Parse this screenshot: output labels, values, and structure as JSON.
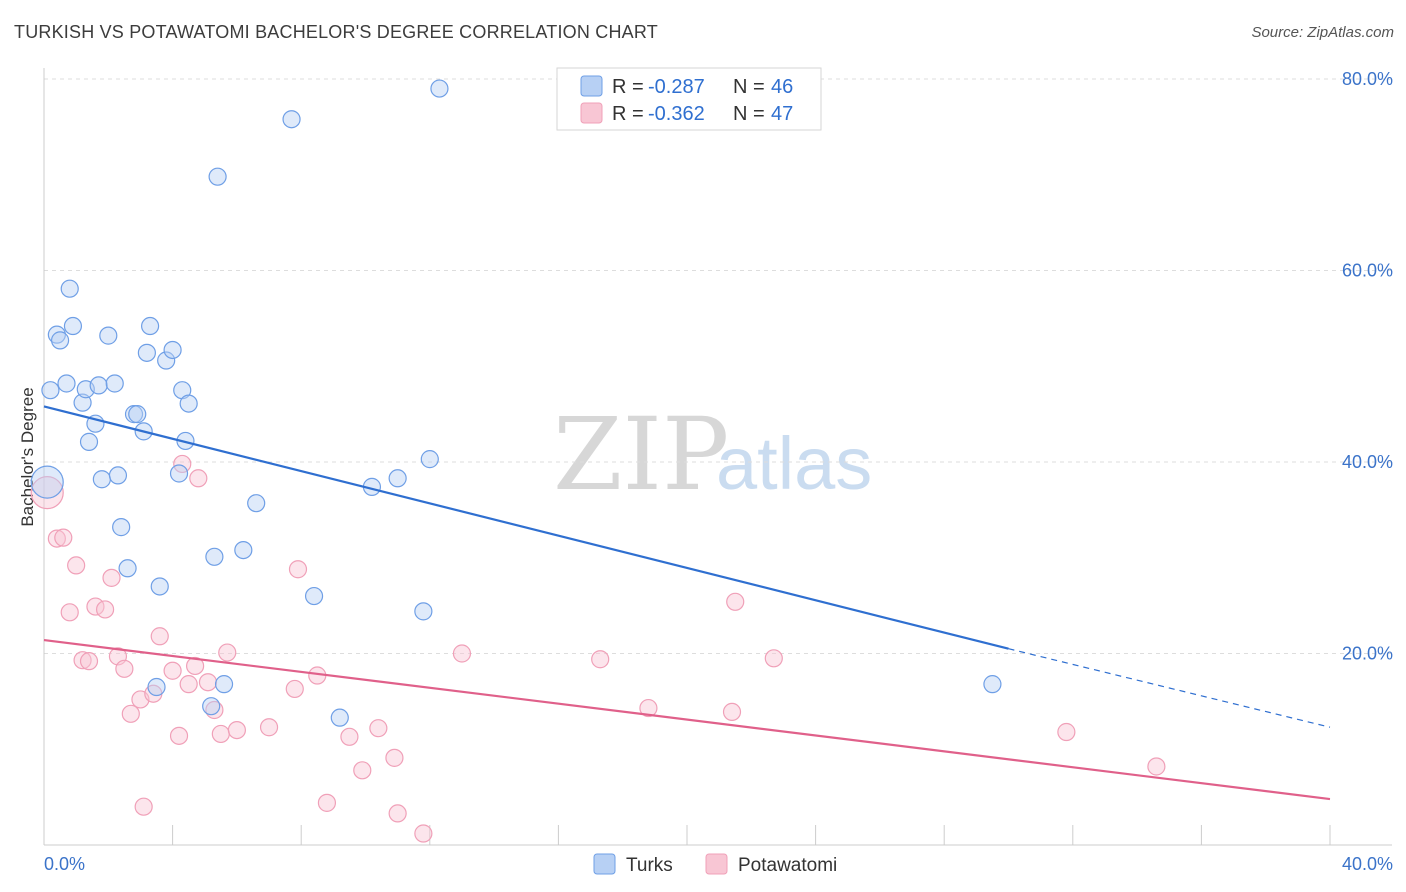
{
  "header": {
    "title": "TURKISH VS POTAWATOMI BACHELOR'S DEGREE CORRELATION CHART",
    "source": "Source: ZipAtlas.com"
  },
  "watermark": {
    "part1": "ZIP",
    "part2": "atlas"
  },
  "legend": {
    "rows": [
      {
        "r_label": "R = ",
        "r_value": "-0.287",
        "n_label": "N = ",
        "n_value": "46"
      },
      {
        "r_label": "R = ",
        "r_value": "-0.362",
        "n_label": "N = ",
        "n_value": "47"
      }
    ]
  },
  "bottom_legend": {
    "items": [
      "Turks",
      "Potawatomi"
    ]
  },
  "chart_data": {
    "type": "scatter",
    "title": "TURKISH VS POTAWATOMI BACHELOR'S DEGREE CORRELATION CHART",
    "xlabel": "",
    "ylabel": "Bachelor's Degree",
    "xlim": [
      0,
      40
    ],
    "ylim": [
      0,
      80
    ],
    "x_tick_labels": [
      "0.0%",
      "40.0%"
    ],
    "y_ticks": [
      20,
      40,
      60,
      80
    ],
    "y_tick_labels": [
      "20.0%",
      "40.0%",
      "60.0%",
      "80.0%"
    ],
    "grid": true,
    "colors": {
      "turks": "#6f9fe6",
      "turks_line": "#2f6fd0",
      "potawatomi": "#f0a0b8",
      "potawatomi_line": "#e0608a"
    },
    "series": [
      {
        "name": "Turks",
        "r": -0.287,
        "n": 46,
        "trend": {
          "x0": 0,
          "y0": 45.8,
          "x1": 30.0,
          "y1": 20.5,
          "dash_to_x": 40.0,
          "dash_to_y": 12.3
        },
        "points": [
          [
            0.1,
            37.9
          ],
          [
            0.2,
            47.5
          ],
          [
            0.4,
            53.3
          ],
          [
            0.5,
            52.7
          ],
          [
            0.7,
            48.2
          ],
          [
            0.8,
            58.1
          ],
          [
            0.9,
            54.2
          ],
          [
            1.2,
            46.2
          ],
          [
            1.3,
            47.6
          ],
          [
            1.4,
            42.1
          ],
          [
            1.6,
            44.0
          ],
          [
            1.7,
            48.0
          ],
          [
            1.8,
            38.2
          ],
          [
            2.0,
            53.2
          ],
          [
            2.2,
            48.2
          ],
          [
            2.3,
            38.6
          ],
          [
            2.4,
            33.2
          ],
          [
            2.6,
            28.9
          ],
          [
            2.8,
            45.0
          ],
          [
            2.9,
            45.0
          ],
          [
            3.1,
            43.2
          ],
          [
            3.2,
            51.4
          ],
          [
            3.3,
            54.2
          ],
          [
            3.5,
            16.5
          ],
          [
            3.6,
            27.0
          ],
          [
            3.8,
            50.6
          ],
          [
            4.0,
            51.7
          ],
          [
            4.2,
            38.8
          ],
          [
            4.3,
            47.5
          ],
          [
            4.4,
            42.2
          ],
          [
            4.5,
            46.1
          ],
          [
            5.2,
            14.5
          ],
          [
            5.3,
            30.1
          ],
          [
            5.6,
            16.8
          ],
          [
            5.4,
            69.8
          ],
          [
            6.2,
            30.8
          ],
          [
            6.6,
            35.7
          ],
          [
            7.7,
            75.8
          ],
          [
            8.4,
            26.0
          ],
          [
            9.2,
            13.3
          ],
          [
            10.2,
            37.4
          ],
          [
            11.0,
            38.3
          ],
          [
            11.8,
            24.4
          ],
          [
            12.0,
            40.3
          ],
          [
            12.3,
            79.0
          ],
          [
            29.5,
            16.8
          ]
        ]
      },
      {
        "name": "Potawatomi",
        "r": -0.362,
        "n": 47,
        "trend": {
          "x0": 0,
          "y0": 21.4,
          "x1": 40.0,
          "y1": 4.8
        },
        "points": [
          [
            0.1,
            36.8
          ],
          [
            0.4,
            32.0
          ],
          [
            0.6,
            32.1
          ],
          [
            0.8,
            24.3
          ],
          [
            1.0,
            29.2
          ],
          [
            1.2,
            19.3
          ],
          [
            1.4,
            19.2
          ],
          [
            1.6,
            24.9
          ],
          [
            1.9,
            24.6
          ],
          [
            2.1,
            27.9
          ],
          [
            2.3,
            19.7
          ],
          [
            2.5,
            18.4
          ],
          [
            2.7,
            13.7
          ],
          [
            3.0,
            15.2
          ],
          [
            3.1,
            4.0
          ],
          [
            3.4,
            15.8
          ],
          [
            3.6,
            21.8
          ],
          [
            4.0,
            18.2
          ],
          [
            4.2,
            11.4
          ],
          [
            4.3,
            39.8
          ],
          [
            4.5,
            16.8
          ],
          [
            4.7,
            18.7
          ],
          [
            4.8,
            38.3
          ],
          [
            5.1,
            17.0
          ],
          [
            5.3,
            14.1
          ],
          [
            5.5,
            11.6
          ],
          [
            5.7,
            20.1
          ],
          [
            6.0,
            12.0
          ],
          [
            7.0,
            12.3
          ],
          [
            7.8,
            16.3
          ],
          [
            7.9,
            28.8
          ],
          [
            8.5,
            17.7
          ],
          [
            8.8,
            4.4
          ],
          [
            9.5,
            11.3
          ],
          [
            9.9,
            7.8
          ],
          [
            10.4,
            12.2
          ],
          [
            10.9,
            9.1
          ],
          [
            11.0,
            3.3
          ],
          [
            11.8,
            1.2
          ],
          [
            13.0,
            20.0
          ],
          [
            17.3,
            19.4
          ],
          [
            18.8,
            14.3
          ],
          [
            21.4,
            13.9
          ],
          [
            21.5,
            25.4
          ],
          [
            22.7,
            19.5
          ],
          [
            31.8,
            11.8
          ],
          [
            34.6,
            8.2
          ]
        ]
      }
    ]
  }
}
